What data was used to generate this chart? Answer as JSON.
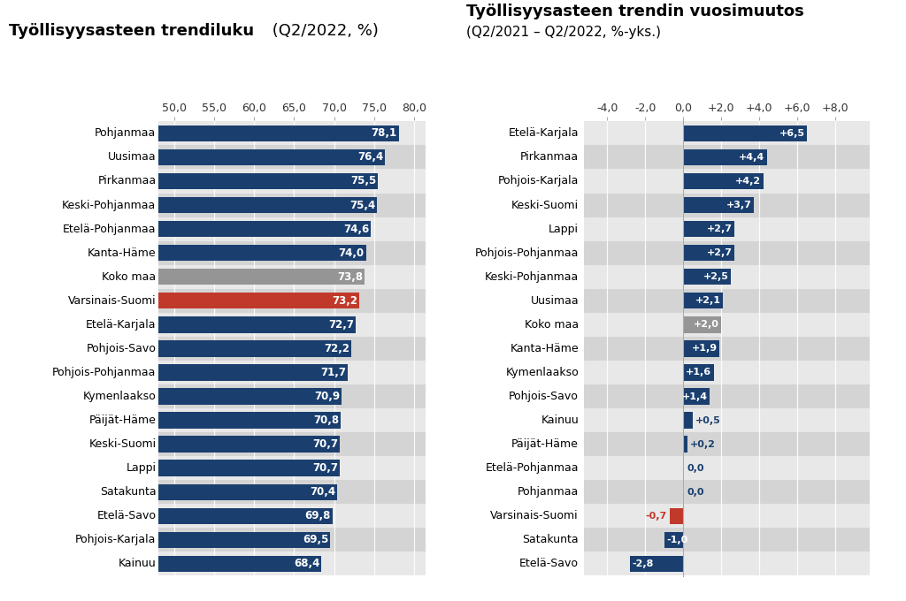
{
  "left_categories": [
    "Pohjanmaa",
    "Uusimaa",
    "Pirkanmaa",
    "Keski-Pohjanmaa",
    "Etelä-Pohjanmaa",
    "Kanta-Häme",
    "Koko maa",
    "Varsinais-Suomi",
    "Etelä-Karjala",
    "Pohjois-Savo",
    "Pohjois-Pohjanmaa",
    "Kymenlaakso",
    "Päijät-Häme",
    "Keski-Suomi",
    "Lappi",
    "Satakunta",
    "Etelä-Savo",
    "Pohjois-Karjala",
    "Kainuu"
  ],
  "left_values": [
    78.1,
    76.4,
    75.5,
    75.4,
    74.6,
    74.0,
    73.8,
    73.2,
    72.7,
    72.2,
    71.7,
    70.9,
    70.8,
    70.7,
    70.7,
    70.4,
    69.8,
    69.5,
    68.4
  ],
  "left_colors": [
    "#1a3f6f",
    "#1a3f6f",
    "#1a3f6f",
    "#1a3f6f",
    "#1a3f6f",
    "#1a3f6f",
    "#959595",
    "#c0392b",
    "#1a3f6f",
    "#1a3f6f",
    "#1a3f6f",
    "#1a3f6f",
    "#1a3f6f",
    "#1a3f6f",
    "#1a3f6f",
    "#1a3f6f",
    "#1a3f6f",
    "#1a3f6f",
    "#1a3f6f"
  ],
  "left_title_bold": "Työllisyysasteen trendiluku",
  "left_title_normal": " (Q2/2022, %)",
  "left_xlim": [
    48.0,
    81.5
  ],
  "left_xticks": [
    50.0,
    55.0,
    60.0,
    65.0,
    70.0,
    75.0,
    80.0
  ],
  "left_xticklabels": [
    "50,0",
    "55,0",
    "60,0",
    "65,0",
    "70,0",
    "75,0",
    "80,0"
  ],
  "right_categories": [
    "Etelä-Karjala",
    "Pirkanmaa",
    "Pohjois-Karjala",
    "Keski-Suomi",
    "Lappi",
    "Pohjois-Pohjanmaa",
    "Keski-Pohjanmaa",
    "Uusimaa",
    "Koko maa",
    "Kanta-Häme",
    "Kymenlaakso",
    "Pohjois-Savo",
    "Kainuu",
    "Päijät-Häme",
    "Etelä-Pohjanmaa",
    "Pohjanmaa",
    "Varsinais-Suomi",
    "Satakunta",
    "Etelä-Savo"
  ],
  "right_values": [
    6.5,
    4.4,
    4.2,
    3.7,
    2.7,
    2.7,
    2.5,
    2.1,
    2.0,
    1.9,
    1.6,
    1.4,
    0.5,
    0.2,
    0.0,
    0.0,
    -0.7,
    -1.0,
    -2.8
  ],
  "right_colors": [
    "#1a3f6f",
    "#1a3f6f",
    "#1a3f6f",
    "#1a3f6f",
    "#1a3f6f",
    "#1a3f6f",
    "#1a3f6f",
    "#1a3f6f",
    "#959595",
    "#1a3f6f",
    "#1a3f6f",
    "#1a3f6f",
    "#1a3f6f",
    "#1a3f6f",
    "#1a3f6f",
    "#1a3f6f",
    "#c0392b",
    "#1a3f6f",
    "#1a3f6f"
  ],
  "right_title_bold": "Työllisyysasteen trendin vuosimuutos",
  "right_title_line2": "(Q2/2021 – Q2/2022, %-yks.)",
  "right_xlim": [
    -5.2,
    9.8
  ],
  "right_xticks": [
    -4.0,
    -2.0,
    0.0,
    2.0,
    4.0,
    6.0,
    8.0
  ],
  "right_xticklabels": [
    "-4,0",
    "-2,0",
    "0,0",
    "+2,0",
    "+4,0",
    "+6,0",
    "+8,0"
  ],
  "bg_white": "#ffffff",
  "row_odd": "#e8e8e8",
  "row_even": "#d4d4d4",
  "font_color": "#1a1a1a"
}
